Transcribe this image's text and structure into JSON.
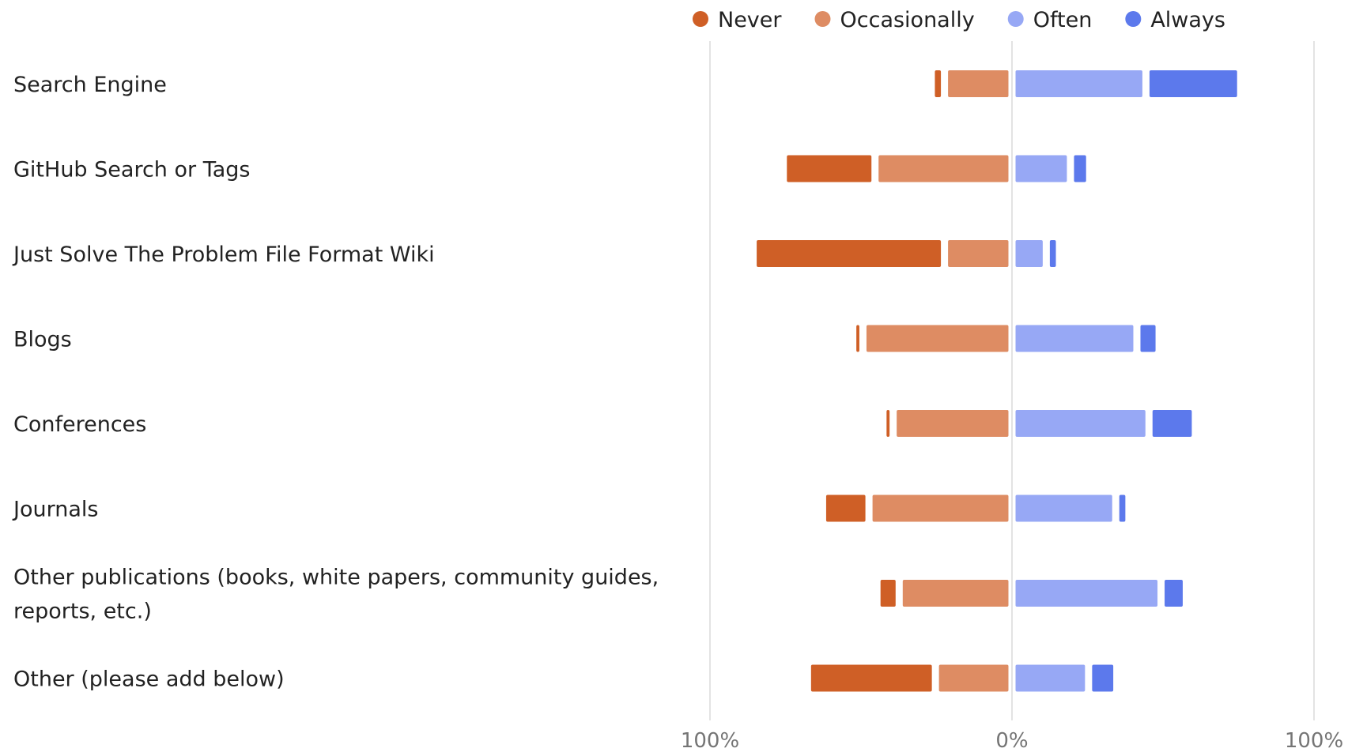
{
  "chart_data": {
    "type": "bar",
    "subtype": "diverging-stacked",
    "title": "",
    "xlabel": "",
    "ylabel": "",
    "xlim": [
      -100,
      100
    ],
    "grid": true,
    "legend_position": "top-right",
    "categories": [
      [
        "Search Engine"
      ],
      [
        "GitHub Search or Tags"
      ],
      [
        "Just Solve The Problem File Format Wiki"
      ],
      [
        "Blogs"
      ],
      [
        "Conferences"
      ],
      [
        "Journals"
      ],
      [
        "Other publications (books, white papers, community guides,",
        "reports, etc.)"
      ],
      [
        "Other (please add below)"
      ]
    ],
    "series": [
      {
        "name": "Never",
        "side": "negative",
        "color": "#CF5F26",
        "values": [
          2,
          28,
          61,
          1,
          1,
          13,
          5,
          40
        ]
      },
      {
        "name": "Occasionally",
        "side": "negative",
        "color": "#DE8C63",
        "values": [
          20,
          43,
          20,
          47,
          37,
          45,
          35,
          23
        ]
      },
      {
        "name": "Often",
        "side": "positive",
        "color": "#97A8F5",
        "values": [
          42,
          17,
          9,
          39,
          43,
          32,
          47,
          23
        ]
      },
      {
        "name": "Always",
        "side": "positive",
        "color": "#5C79EC",
        "values": [
          29,
          4,
          2,
          5,
          13,
          2,
          6,
          7
        ]
      }
    ],
    "tick_labels": [
      "100%",
      "0%",
      "100%"
    ]
  }
}
